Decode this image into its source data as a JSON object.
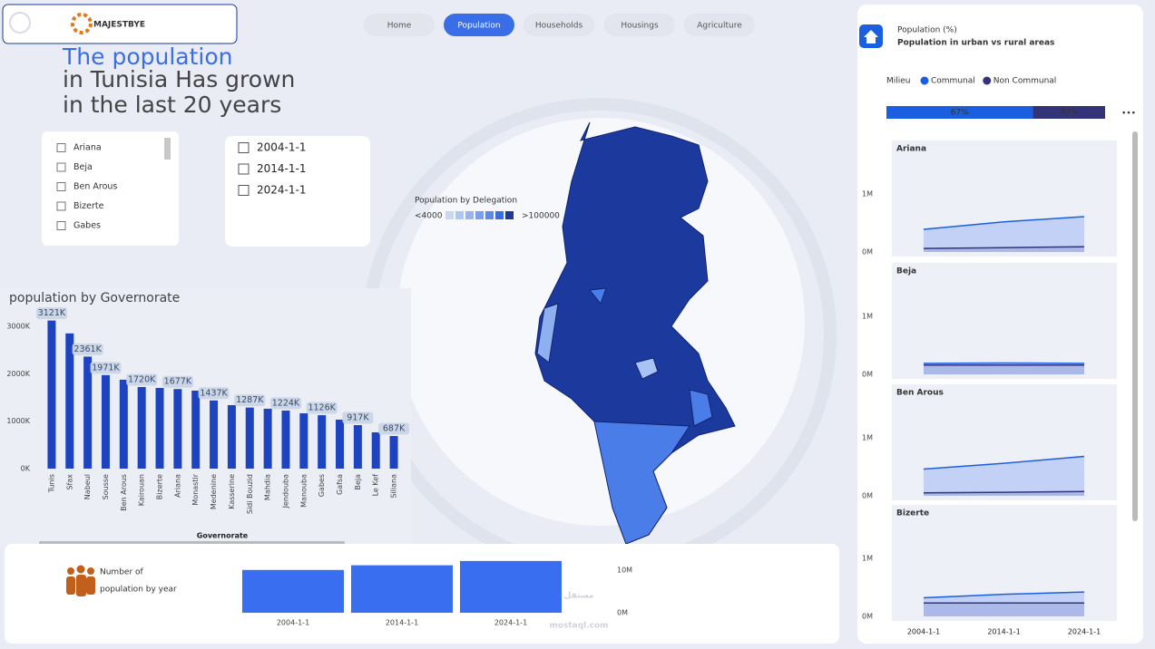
{
  "nav": {
    "logo": "MAJESTBYE",
    "tabs": [
      "Home",
      "Population",
      "Households",
      "Housings",
      "Agriculture"
    ],
    "active_tab": 1
  },
  "headline": [
    "The population",
    "in Tunisia Has grown",
    "in the last 20 years"
  ],
  "governorate_slicer": [
    "Ariana",
    "Beja",
    "Ben Arous",
    "Bizerte",
    "Gabes"
  ],
  "year_slicer": [
    "2004-1-1",
    "2014-1-1",
    "2024-1-1"
  ],
  "map": {
    "title": "Population by  Delegation",
    "legend_low": "<4000",
    "legend_high": ">100000"
  },
  "watermark": [
    "مستقل",
    "mostaql.com"
  ],
  "chart_data": [
    {
      "type": "bar",
      "title": "population by Governorate",
      "x_label": "Governorate",
      "color": "#1e43c0",
      "categories": [
        "Tunis",
        "Sfax",
        "Nabeul",
        "Sousse",
        "Ben Arous",
        "Kairouan",
        "Bizerte",
        "Ariana",
        "Monastir",
        "Medenine",
        "Kasserine",
        "Sidi Bouzid",
        "Mahdia",
        "Jendouba",
        "Manouba",
        "Gabes",
        "Gafsa",
        "Beja",
        "Le Kef",
        "Siliana"
      ],
      "values": [
        3121,
        2850,
        2361,
        1971,
        1874,
        1720,
        1700,
        1677,
        1644,
        1437,
        1338,
        1287,
        1262,
        1224,
        1166,
        1126,
        1032,
        917,
        765,
        687
      ],
      "value_labels": [
        "3121K",
        null,
        "2361K",
        "1971K",
        null,
        "1720K",
        null,
        "1677K",
        null,
        "1437K",
        null,
        "1287K",
        null,
        "1224K",
        null,
        "1126K",
        null,
        "917K",
        null,
        "687K"
      ],
      "ylim": [
        0,
        3200
      ],
      "yticks": [
        {
          "value": 0,
          "label": "0K"
        },
        {
          "value": 1000,
          "label": "1000K"
        },
        {
          "value": 2000,
          "label": "2000K"
        },
        {
          "value": 3000,
          "label": "3000K"
        }
      ]
    },
    {
      "type": "stacked-bar-100",
      "subtitle": "Population (%)",
      "title": "Population in urban vs rural areas",
      "legend_title": "Milieu",
      "series": [
        {
          "name": "Communal",
          "color": "#1a5fe0",
          "values": [
            67
          ],
          "value_labels": [
            "67%"
          ]
        },
        {
          "name": "Non Communal",
          "color": "#33337a",
          "values": [
            33
          ],
          "value_labels": [
            "33%"
          ]
        }
      ]
    },
    {
      "type": "area",
      "x": [
        "2004-1-1",
        "2014-1-1",
        "2024-1-1"
      ],
      "ylim": [
        0,
        1800000
      ],
      "yticks": [
        {
          "value": 0,
          "label": "0M"
        },
        {
          "value": 1000000,
          "label": "1M"
        }
      ],
      "panels": [
        {
          "name": "Ariana",
          "series": [
            {
              "color": "#1a5fe0",
              "values": [
                390000,
                520000,
                610000
              ]
            },
            {
              "color": "#33337a",
              "values": [
                60000,
                75000,
                90000
              ]
            }
          ]
        },
        {
          "name": "Beja",
          "series": [
            {
              "color": "#1a5fe0",
              "values": [
                190000,
                195000,
                190000
              ]
            },
            {
              "color": "#33337a",
              "values": [
                160000,
                160000,
                160000
              ]
            }
          ]
        },
        {
          "name": "Ben Arous",
          "series": [
            {
              "color": "#1a5fe0",
              "values": [
                460000,
                560000,
                680000
              ]
            },
            {
              "color": "#33337a",
              "values": [
                50000,
                60000,
                75000
              ]
            }
          ]
        },
        {
          "name": "Bizerte",
          "series": [
            {
              "color": "#1a5fe0",
              "values": [
                320000,
                380000,
                420000
              ]
            },
            {
              "color": "#33337a",
              "values": [
                230000,
                230000,
                230000
              ]
            }
          ]
        }
      ]
    },
    {
      "type": "bar",
      "title_lines": [
        "Number of",
        "population by year"
      ],
      "color": "#3a6ef0",
      "categories": [
        "2004-1-1",
        "2014-1-1",
        "2024-1-1"
      ],
      "values": [
        10000000,
        11100000,
        12100000
      ],
      "ylim": [
        0,
        12500000
      ],
      "yticks": [
        {
          "value": 0,
          "label": "0M"
        },
        {
          "value": 10000000,
          "label": "10M"
        }
      ]
    }
  ]
}
